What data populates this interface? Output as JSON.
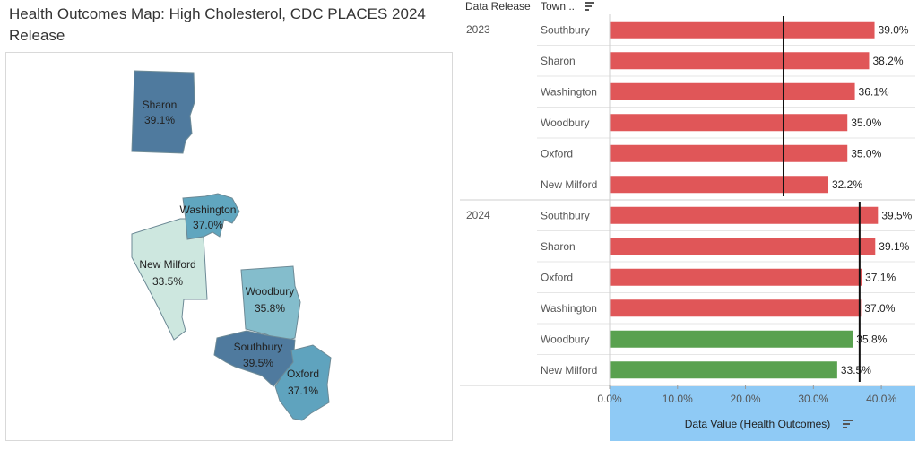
{
  "page": {
    "title": "Health Outcomes Map: High Cholesterol, CDC PLACES 2024 Release"
  },
  "map": {
    "towns": [
      {
        "key": "sharon",
        "name": "Sharon",
        "value": "39.1%",
        "color": "#4f7a9e"
      },
      {
        "key": "washington",
        "name": "Washington",
        "value": "37.0%",
        "color": "#60a6bf"
      },
      {
        "key": "new_milford",
        "name": "New Milford",
        "value": "33.5%",
        "color": "#cde7df"
      },
      {
        "key": "woodbury",
        "name": "Woodbury",
        "value": "35.8%",
        "color": "#84bdcc"
      },
      {
        "key": "southbury",
        "name": "Southbury",
        "value": "39.5%",
        "color": "#4f7a9e"
      },
      {
        "key": "oxford",
        "name": "Oxford",
        "value": "37.1%",
        "color": "#5fa3be"
      }
    ]
  },
  "chart_header": {
    "col1": "Data Release",
    "col2": "Town ..",
    "sort_icon": "sort-icon"
  },
  "chart_data": {
    "type": "bar",
    "orientation": "horizontal",
    "x_axis_title": "Data Value (Health Outcomes)",
    "x_ticks": [
      "0.0%",
      "10.0%",
      "20.0%",
      "30.0%",
      "40.0%"
    ],
    "xlim": [
      0,
      45
    ],
    "colors": {
      "above": "#e05658",
      "below": "#59a14f"
    },
    "groups": [
      {
        "label": "2023",
        "reference_line": 25.6,
        "rows": [
          {
            "town": "Southbury",
            "value": 39.0,
            "label": "39.0%",
            "color": "above"
          },
          {
            "town": "Sharon",
            "value": 38.2,
            "label": "38.2%",
            "color": "above"
          },
          {
            "town": "Washington",
            "value": 36.1,
            "label": "36.1%",
            "color": "above"
          },
          {
            "town": "Woodbury",
            "value": 35.0,
            "label": "35.0%",
            "color": "above"
          },
          {
            "town": "Oxford",
            "value": 35.0,
            "label": "35.0%",
            "color": "above"
          },
          {
            "town": "New Milford",
            "value": 32.2,
            "label": "32.2%",
            "color": "above"
          }
        ]
      },
      {
        "label": "2024",
        "reference_line": 36.8,
        "rows": [
          {
            "town": "Southbury",
            "value": 39.5,
            "label": "39.5%",
            "color": "above"
          },
          {
            "town": "Sharon",
            "value": 39.1,
            "label": "39.1%",
            "color": "above"
          },
          {
            "town": "Oxford",
            "value": 37.1,
            "label": "37.1%",
            "color": "above"
          },
          {
            "town": "Washington",
            "value": 37.0,
            "label": "37.0%",
            "color": "above"
          },
          {
            "town": "Woodbury",
            "value": 35.8,
            "label": "35.8%",
            "color": "below"
          },
          {
            "town": "New Milford",
            "value": 33.5,
            "label": "33.5%",
            "color": "below"
          }
        ]
      }
    ],
    "axis_band_color": "#8fcaf5"
  }
}
